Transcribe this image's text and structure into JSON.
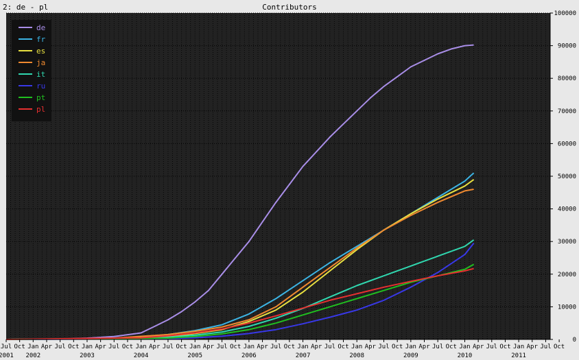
{
  "header": {
    "corner_label": "2: de - pl",
    "title": "Contributors"
  },
  "chart_data": {
    "type": "line",
    "title": "Contributors",
    "xlabel": "",
    "ylabel": "",
    "ylim": [
      0,
      100000
    ],
    "grid": true,
    "legend_placement": "top-left",
    "background": "#222222",
    "y_ticks": [
      0,
      10000,
      20000,
      30000,
      40000,
      50000,
      60000,
      70000,
      80000,
      90000,
      100000
    ],
    "x_month_ticks": [
      "Jul",
      "Oct",
      "Jan",
      "Apr",
      "Jul",
      "Oct",
      "Jan",
      "Apr",
      "Jul",
      "Oct",
      "Jan",
      "Apr",
      "Jul",
      "Oct",
      "Jan",
      "Apr",
      "Jul",
      "Oct",
      "Jan",
      "Apr",
      "Jul",
      "Oct",
      "Jan",
      "Apr",
      "Jul",
      "Oct",
      "Jan",
      "Apr",
      "Jul",
      "Oct",
      "Jan",
      "Apr",
      "Jul",
      "Oct",
      "Jan",
      "Apr",
      "Jul",
      "Oct",
      "Jan",
      "Apr",
      "Jul",
      "Oct"
    ],
    "x_year_ticks": [
      "2001",
      "2002",
      "2003",
      "2004",
      "2005",
      "2006",
      "2007",
      "2008",
      "2009",
      "2010",
      "2011"
    ],
    "x_range": [
      "2001-07",
      "2011-08"
    ],
    "series": [
      {
        "name": "de",
        "color": "#a98ee8",
        "points": [
          [
            "2001-07",
            0
          ],
          [
            "2002-07",
            100
          ],
          [
            "2003-01",
            400
          ],
          [
            "2003-07",
            900
          ],
          [
            "2004-01",
            2000
          ],
          [
            "2004-04",
            4000
          ],
          [
            "2004-07",
            6000
          ],
          [
            "2004-10",
            8500
          ],
          [
            "2005-01",
            11500
          ],
          [
            "2005-04",
            15000
          ],
          [
            "2005-07",
            20000
          ],
          [
            "2005-10",
            25000
          ],
          [
            "2006-01",
            30000
          ],
          [
            "2006-04",
            36000
          ],
          [
            "2006-07",
            42000
          ],
          [
            "2006-10",
            47500
          ],
          [
            "2007-01",
            53000
          ],
          [
            "2007-04",
            57500
          ],
          [
            "2007-07",
            62000
          ],
          [
            "2007-10",
            66000
          ],
          [
            "2008-01",
            70000
          ],
          [
            "2008-04",
            74000
          ],
          [
            "2008-07",
            77500
          ],
          [
            "2008-10",
            80500
          ],
          [
            "2009-01",
            83500
          ],
          [
            "2009-04",
            85500
          ],
          [
            "2009-07",
            87500
          ],
          [
            "2009-10",
            89000
          ],
          [
            "2010-01",
            90000
          ],
          [
            "2010-03",
            90200
          ]
        ]
      },
      {
        "name": "fr",
        "color": "#3cb4e4",
        "points": [
          [
            "2001-07",
            0
          ],
          [
            "2003-01",
            200
          ],
          [
            "2004-01",
            700
          ],
          [
            "2004-07",
            1500
          ],
          [
            "2005-01",
            2700
          ],
          [
            "2005-07",
            4500
          ],
          [
            "2006-01",
            7800
          ],
          [
            "2006-07",
            12500
          ],
          [
            "2007-01",
            18000
          ],
          [
            "2007-07",
            23500
          ],
          [
            "2008-01",
            28500
          ],
          [
            "2008-07",
            33500
          ],
          [
            "2009-01",
            38500
          ],
          [
            "2009-07",
            43500
          ],
          [
            "2010-01",
            48500
          ],
          [
            "2010-03",
            51000
          ]
        ]
      },
      {
        "name": "es",
        "color": "#e8e040",
        "points": [
          [
            "2001-07",
            0
          ],
          [
            "2003-07",
            200
          ],
          [
            "2004-07",
            900
          ],
          [
            "2005-01",
            1800
          ],
          [
            "2005-07",
            3000
          ],
          [
            "2006-01",
            5500
          ],
          [
            "2006-07",
            9000
          ],
          [
            "2007-01",
            14500
          ],
          [
            "2007-07",
            21000
          ],
          [
            "2008-01",
            27500
          ],
          [
            "2008-07",
            33500
          ],
          [
            "2009-01",
            38500
          ],
          [
            "2009-07",
            43000
          ],
          [
            "2010-01",
            47000
          ],
          [
            "2010-03",
            49000
          ]
        ]
      },
      {
        "name": "ja",
        "color": "#f08a30",
        "points": [
          [
            "2001-07",
            0
          ],
          [
            "2002-07",
            100
          ],
          [
            "2003-07",
            400
          ],
          [
            "2004-07",
            1500
          ],
          [
            "2005-01",
            2500
          ],
          [
            "2005-07",
            3800
          ],
          [
            "2006-01",
            6000
          ],
          [
            "2006-07",
            10000
          ],
          [
            "2007-01",
            16000
          ],
          [
            "2007-07",
            22000
          ],
          [
            "2008-01",
            28000
          ],
          [
            "2008-07",
            33500
          ],
          [
            "2009-01",
            38000
          ],
          [
            "2009-07",
            42000
          ],
          [
            "2010-01",
            45500
          ],
          [
            "2010-03",
            46000
          ]
        ]
      },
      {
        "name": "it",
        "color": "#30d8b0",
        "points": [
          [
            "2001-07",
            0
          ],
          [
            "2004-01",
            300
          ],
          [
            "2004-07",
            700
          ],
          [
            "2005-01",
            1300
          ],
          [
            "2005-07",
            2300
          ],
          [
            "2006-01",
            4000
          ],
          [
            "2006-07",
            6500
          ],
          [
            "2007-01",
            9500
          ],
          [
            "2007-07",
            13000
          ],
          [
            "2008-01",
            16500
          ],
          [
            "2008-07",
            19500
          ],
          [
            "2009-01",
            22500
          ],
          [
            "2009-07",
            25500
          ],
          [
            "2010-01",
            28500
          ],
          [
            "2010-03",
            30500
          ]
        ]
      },
      {
        "name": "ru",
        "color": "#3838e8",
        "points": [
          [
            "2001-07",
            0
          ],
          [
            "2004-07",
            200
          ],
          [
            "2005-01",
            500
          ],
          [
            "2005-07",
            1000
          ],
          [
            "2006-01",
            1800
          ],
          [
            "2006-07",
            3000
          ],
          [
            "2007-01",
            4800
          ],
          [
            "2007-07",
            6800
          ],
          [
            "2008-01",
            9000
          ],
          [
            "2008-07",
            12000
          ],
          [
            "2009-01",
            16000
          ],
          [
            "2009-07",
            20500
          ],
          [
            "2010-01",
            26000
          ],
          [
            "2010-03",
            29500
          ]
        ]
      },
      {
        "name": "pt",
        "color": "#20c020",
        "points": [
          [
            "2001-07",
            0
          ],
          [
            "2004-07",
            400
          ],
          [
            "2005-01",
            900
          ],
          [
            "2005-07",
            1700
          ],
          [
            "2006-01",
            3000
          ],
          [
            "2006-07",
            5000
          ],
          [
            "2007-01",
            7500
          ],
          [
            "2007-07",
            10000
          ],
          [
            "2008-01",
            12500
          ],
          [
            "2008-07",
            15000
          ],
          [
            "2009-01",
            17500
          ],
          [
            "2009-07",
            19500
          ],
          [
            "2010-01",
            21500
          ],
          [
            "2010-03",
            23000
          ]
        ]
      },
      {
        "name": "pl",
        "color": "#e83030",
        "points": [
          [
            "2001-07",
            0
          ],
          [
            "2004-01",
            500
          ],
          [
            "2004-07",
            1100
          ],
          [
            "2005-01",
            2000
          ],
          [
            "2005-07",
            3200
          ],
          [
            "2006-01",
            5000
          ],
          [
            "2006-07",
            7200
          ],
          [
            "2007-01",
            9600
          ],
          [
            "2007-07",
            12000
          ],
          [
            "2008-01",
            14000
          ],
          [
            "2008-07",
            16000
          ],
          [
            "2009-01",
            17800
          ],
          [
            "2009-07",
            19500
          ],
          [
            "2010-01",
            21000
          ],
          [
            "2010-03",
            21700
          ]
        ]
      }
    ]
  }
}
